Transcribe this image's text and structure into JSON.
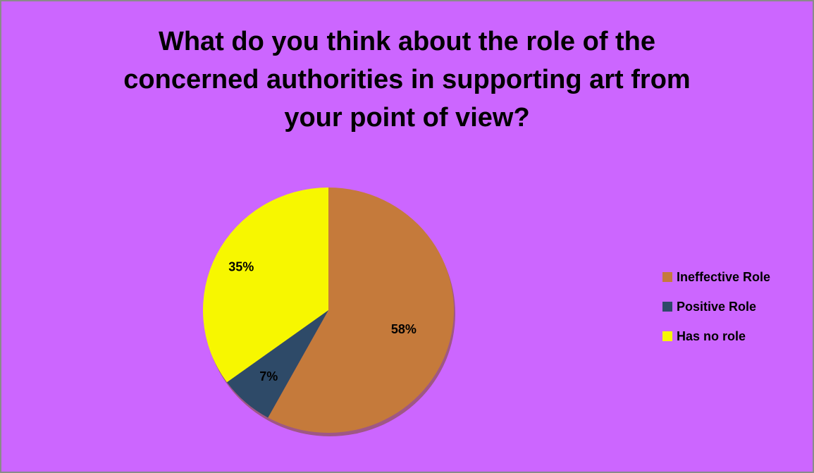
{
  "chart_data": {
    "type": "pie",
    "title_lines": [
      "What do you think about the role of the",
      "concerned authorities in supporting art from",
      "your point of view?"
    ],
    "slices": [
      {
        "label": "Ineffective Role",
        "value": 58,
        "data_label": "58%",
        "color": "#c57a3b"
      },
      {
        "label": "Positive Role",
        "value": 7,
        "data_label": "7%",
        "color": "#2e4a68"
      },
      {
        "label": "Has no role",
        "value": 35,
        "data_label": "35%",
        "color": "#f7f700"
      }
    ],
    "legend_position": "right",
    "background_color": "#cc66ff"
  }
}
